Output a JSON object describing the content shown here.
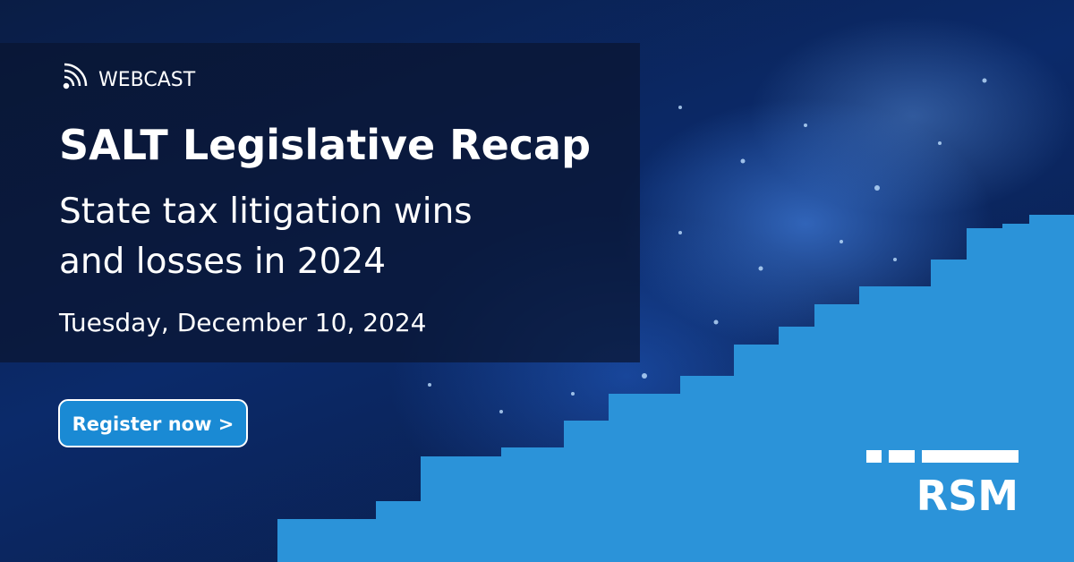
{
  "label": "WEBCAST",
  "title": "SALT Legislative Recap",
  "subtitle_lines": [
    "State tax litigation wins",
    "and losses in 2024"
  ],
  "date": "Tuesday, December 10, 2024",
  "button": "Register now >",
  "logo": "RSM"
}
